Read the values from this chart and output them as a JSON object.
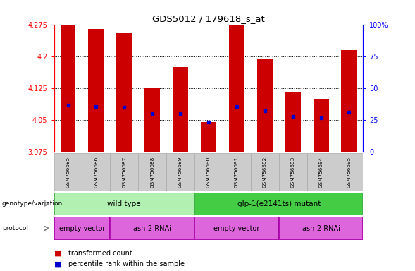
{
  "title": "GDS5012 / 179618_s_at",
  "samples": [
    "GSM756685",
    "GSM756686",
    "GSM756687",
    "GSM756688",
    "GSM756689",
    "GSM756690",
    "GSM756691",
    "GSM756692",
    "GSM756693",
    "GSM756694",
    "GSM756695"
  ],
  "bar_tops": [
    4.275,
    4.265,
    4.255,
    4.125,
    4.175,
    4.045,
    4.275,
    4.195,
    4.115,
    4.1,
    4.215
  ],
  "bar_base": 3.975,
  "blue_dot_values": [
    4.085,
    4.082,
    4.08,
    4.065,
    4.065,
    4.045,
    4.082,
    4.072,
    4.058,
    4.055,
    4.068
  ],
  "ylim": [
    3.975,
    4.275
  ],
  "yticks": [
    3.975,
    4.05,
    4.125,
    4.2,
    4.275
  ],
  "ytick_labels": [
    "3.975",
    "4.05",
    "4.125",
    "4.2",
    "4.275"
  ],
  "right_yticks": [
    0,
    25,
    50,
    75,
    100
  ],
  "right_ytick_labels": [
    "0",
    "25",
    "50",
    "75",
    "100%"
  ],
  "bar_color": "#cc0000",
  "dot_color": "#0000cc",
  "wt_color": "#b2f0b2",
  "mut_color": "#44cc44",
  "wt_border": "#44aa44",
  "mut_border": "#44aa44",
  "proto_color": "#dd66dd",
  "proto_border": "#aa00aa",
  "sample_box_color": "#cccccc",
  "sample_box_border": "#aaaaaa"
}
